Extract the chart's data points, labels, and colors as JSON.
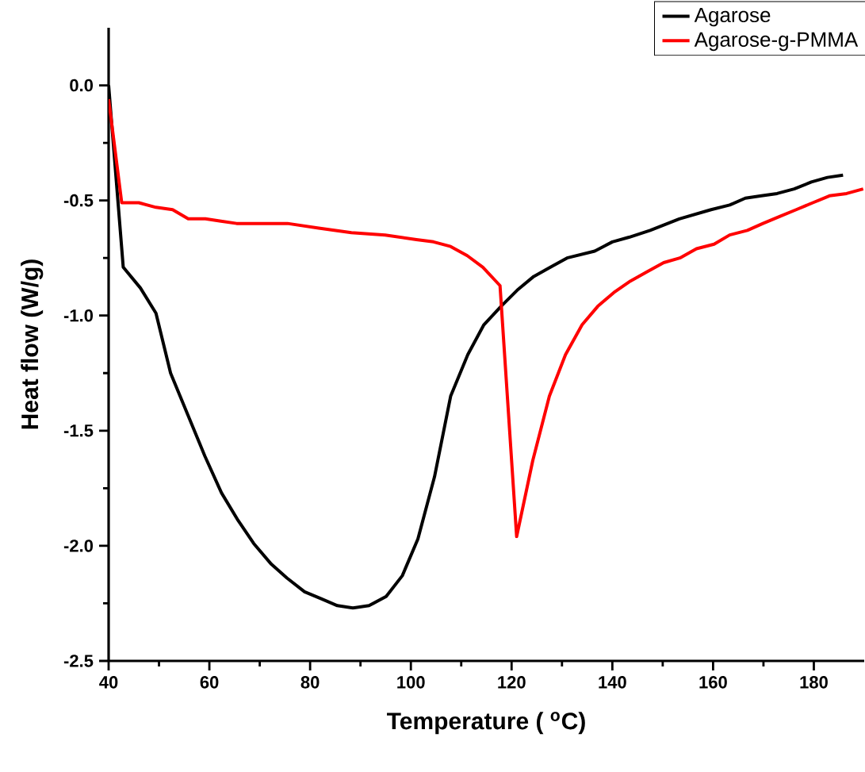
{
  "chart_data": {
    "type": "line",
    "xlabel": "Temperature ( $^{o}$C)",
    "ylabel": "Heat flow (W/g)",
    "xlim": [
      40,
      190
    ],
    "ylim": [
      -2.5,
      0.25
    ],
    "xticks": [
      40,
      60,
      80,
      100,
      120,
      140,
      160,
      180
    ],
    "yticks": [
      {
        "value": 0,
        "label": "0.0"
      },
      {
        "value": -0.5,
        "label": "-0.5"
      },
      {
        "value": -1.0,
        "label": "-1.0"
      },
      {
        "value": -1.5,
        "label": "-1.5"
      },
      {
        "value": -2.0,
        "label": "-2.0"
      },
      {
        "value": -2.5,
        "label": "-2.5"
      }
    ],
    "legend": "top right",
    "grid": false,
    "marker": "none",
    "line_style": "solid",
    "series": [
      {
        "name": "Agarose",
        "color": "#000000",
        "x": [
          40,
          42.9,
          46.3,
          49.4,
          52.3,
          55.7,
          59.1,
          62.4,
          65.7,
          68.8,
          72.3,
          75.4,
          78.9,
          82.2,
          85.4,
          88.5,
          91.7,
          95.1,
          98.3,
          101.4,
          104.7,
          107.9,
          111.3,
          114.5,
          117.9,
          121.1,
          124.4,
          127.7,
          131.0,
          136.5,
          140.0,
          143.3,
          147.5,
          153.3,
          159.6,
          163.3,
          166.4,
          169.6,
          172.7,
          176.1,
          179.5,
          182.7,
          185.8
        ],
        "values": [
          0.0,
          -0.79,
          -0.88,
          -0.99,
          -1.25,
          -1.43,
          -1.61,
          -1.77,
          -1.89,
          -1.99,
          -2.08,
          -2.14,
          -2.2,
          -2.23,
          -2.26,
          -2.27,
          -2.26,
          -2.22,
          -2.13,
          -1.97,
          -1.7,
          -1.35,
          -1.17,
          -1.04,
          -0.96,
          -0.89,
          -0.83,
          -0.79,
          -0.75,
          -0.72,
          -0.68,
          -0.66,
          -0.63,
          -0.58,
          -0.54,
          -0.52,
          -0.49,
          -0.48,
          -0.47,
          -0.45,
          -0.42,
          -0.4,
          -0.39
        ]
      },
      {
        "name": "Agarose-g-PMMA",
        "color": "#ff0000",
        "x": [
          40,
          42.6,
          46.0,
          49.4,
          52.7,
          55.8,
          59.2,
          62.3,
          65.4,
          75.5,
          81.7,
          84.8,
          88.2,
          94.9,
          101.1,
          104.5,
          107.9,
          111.2,
          114.3,
          117.7,
          121.0,
          124.2,
          127.5,
          130.7,
          134.0,
          137.1,
          140.3,
          143.6,
          146.9,
          150.2,
          153.4,
          156.7,
          160.2,
          163.3,
          166.8,
          169.9,
          173.2,
          176.5,
          179.8,
          183.1,
          186.5,
          189.8
        ],
        "values": [
          -0.06,
          -0.51,
          -0.51,
          -0.53,
          -0.54,
          -0.58,
          -0.58,
          -0.59,
          -0.6,
          -0.6,
          -0.62,
          -0.63,
          -0.64,
          -0.65,
          -0.67,
          -0.68,
          -0.7,
          -0.74,
          -0.79,
          -0.87,
          -1.96,
          -1.63,
          -1.35,
          -1.17,
          -1.04,
          -0.96,
          -0.9,
          -0.85,
          -0.81,
          -0.77,
          -0.75,
          -0.71,
          -0.69,
          -0.65,
          -0.63,
          -0.6,
          -0.57,
          -0.54,
          -0.51,
          -0.48,
          -0.47,
          -0.45
        ]
      }
    ]
  }
}
